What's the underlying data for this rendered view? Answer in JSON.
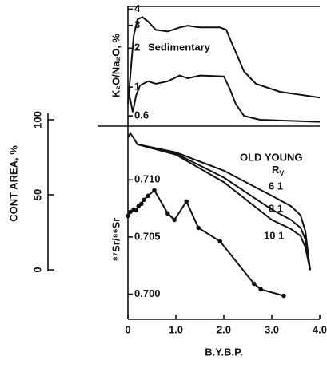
{
  "chart_data": [
    {
      "type": "line",
      "log_y": true,
      "ylabel": "K₂O/Na₂O, %",
      "annotation": "Sedimentary",
      "ylim": [
        0.5,
        4.2
      ],
      "yticks": [
        0.6,
        1,
        2,
        3,
        4
      ],
      "xlim": [
        0,
        4
      ],
      "series": [
        {
          "color": "#111111",
          "x": [
            0,
            0.05,
            0.12,
            0.2,
            0.3,
            0.42,
            0.58,
            0.83,
            1.08,
            1.25,
            1.5,
            1.92,
            2.05,
            2.17,
            2.28,
            2.42,
            2.67,
            3.17,
            4.0
          ],
          "values": [
            0.74,
            1.23,
            2.5,
            3.34,
            3.48,
            3.21,
            2.77,
            2.69,
            2.89,
            2.98,
            2.89,
            2.89,
            2.77,
            2.17,
            1.75,
            1.32,
            1.06,
            0.92,
            0.83
          ]
        },
        {
          "color": "#111111",
          "x": [
            0,
            0.05,
            0.1,
            0.17,
            0.25,
            0.42,
            0.58,
            0.83,
            1.08,
            1.25,
            1.5,
            2.0,
            2.12,
            2.25,
            2.42,
            2.75,
            4.0
          ],
          "values": [
            0.92,
            0.8,
            0.64,
            0.86,
            1.03,
            1.11,
            1.06,
            1.11,
            1.23,
            1.17,
            1.23,
            1.21,
            0.98,
            0.74,
            0.6,
            0.56,
            0.54
          ]
        }
      ]
    },
    {
      "type": "line",
      "ylabel": "⁸⁷Sr/⁸⁶Sr",
      "xlabel": "B.Y.B.P.",
      "legend_title": "OLD YOUNG",
      "rv": {
        "main": "R",
        "sub": "V"
      },
      "left_axis": {
        "label": "CONT AREA, %",
        "ylim": [
          0,
          100
        ],
        "yticks": [
          0,
          50,
          100
        ]
      },
      "xlim": [
        0,
        4
      ],
      "xticks": [
        0,
        {
          "value": 1,
          "label": "1.0"
        },
        {
          "value": 2,
          "label": "2.0"
        },
        {
          "value": 3,
          "label": "3.0"
        },
        {
          "value": 4,
          "label": "4.0"
        }
      ],
      "ylim": [
        0.6978,
        0.7147
      ],
      "yticks": [
        {
          "value": 0.7,
          "label": "0.700"
        },
        {
          "value": 0.705,
          "label": "0.705"
        },
        {
          "value": 0.71,
          "label": "0.710"
        }
      ],
      "series": [
        {
          "name": "6 1",
          "color": "#111111",
          "x": [
            0,
            0.05,
            0.2,
            1.0,
            2.0,
            3.0,
            3.4,
            3.6,
            3.7,
            3.8
          ],
          "values": [
            0.7137,
            0.7141,
            0.7131,
            0.7124,
            0.7108,
            0.7086,
            0.7077,
            0.7069,
            0.7055,
            0.7021
          ]
        },
        {
          "name": "8 1",
          "color": "#111111",
          "x": [
            0.2,
            1.0,
            2.0,
            3.0,
            3.4,
            3.6,
            3.7,
            3.8
          ],
          "values": [
            0.7131,
            0.7123,
            0.7102,
            0.7074,
            0.7065,
            0.7058,
            0.7048,
            0.7021
          ]
        },
        {
          "name": "10 1",
          "color": "#111111",
          "x": [
            0.2,
            1.0,
            2.0,
            3.0,
            3.4,
            3.6,
            3.7,
            3.8
          ],
          "values": [
            0.7131,
            0.7122,
            0.7098,
            0.7065,
            0.7057,
            0.7051,
            0.7041,
            0.7021
          ]
        },
        {
          "color": "#111111",
          "markers": true,
          "x": [
            0,
            0.05,
            0.12,
            0.17,
            0.22,
            0.28,
            0.33,
            0.42,
            0.55,
            0.83,
            0.97,
            1.22,
            1.47,
            1.92,
            2.63,
            2.77,
            3.25
          ],
          "values": [
            0.70685,
            0.7072,
            0.70741,
            0.70734,
            0.70769,
            0.7079,
            0.70825,
            0.7086,
            0.70909,
            0.70706,
            0.7065,
            0.70811,
            0.7058,
            0.70462,
            0.70091,
            0.70042,
            0.69986
          ]
        }
      ]
    }
  ]
}
